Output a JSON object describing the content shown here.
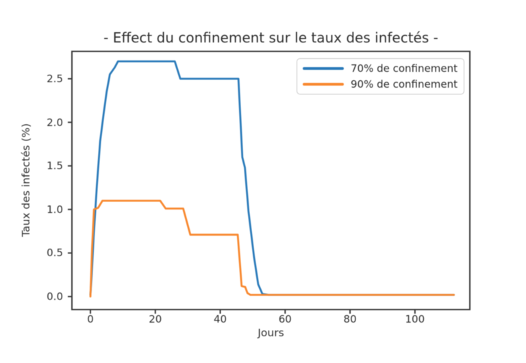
{
  "chart_data": {
    "type": "line",
    "title": "- Effect du confinement sur le taux des infectés -",
    "xlabel": "Jours",
    "ylabel": "Taux des infectés (%)",
    "xlim": [
      -5.7,
      116.9
    ],
    "ylim": [
      -0.15,
      2.81
    ],
    "grid": false,
    "legend_position": "upper right",
    "x_ticks": [
      {
        "label": "0",
        "value": 0
      },
      {
        "label": "20",
        "value": 20
      },
      {
        "label": "40",
        "value": 40
      },
      {
        "label": "60",
        "value": 60
      },
      {
        "label": "80",
        "value": 80
      },
      {
        "label": "100",
        "value": 100
      }
    ],
    "y_ticks": [
      {
        "label": "2.5",
        "value": 2.5
      },
      {
        "label": "2.0",
        "value": 2.0
      },
      {
        "label": "1.5",
        "value": 1.5
      },
      {
        "label": "1.0",
        "value": 1.0
      },
      {
        "label": "0.5",
        "value": 0.5
      },
      {
        "label": "0.0",
        "value": 0.0
      }
    ],
    "series": [
      {
        "name": "70% de confinement",
        "color": "#2b7bba",
        "points": [
          [
            0,
            0.02
          ],
          [
            0.4,
            0.25
          ],
          [
            1,
            0.68
          ],
          [
            2,
            1.28
          ],
          [
            3,
            1.78
          ],
          [
            4,
            2.08
          ],
          [
            5,
            2.35
          ],
          [
            6,
            2.55
          ],
          [
            7.5,
            2.63
          ],
          [
            8.5,
            2.7
          ],
          [
            26,
            2.7
          ],
          [
            27.7,
            2.5
          ],
          [
            45.6,
            2.5
          ],
          [
            46.8,
            1.6
          ],
          [
            47.6,
            1.48
          ],
          [
            48.7,
            0.98
          ],
          [
            50.4,
            0.46
          ],
          [
            51.7,
            0.14
          ],
          [
            53,
            0.03
          ],
          [
            55,
            0.02
          ],
          [
            112,
            0.02
          ]
        ]
      },
      {
        "name": "90% de confinement",
        "color": "#f8882f",
        "points": [
          [
            0,
            0.0
          ],
          [
            0.5,
            0.55
          ],
          [
            1.1,
            1.0
          ],
          [
            2.4,
            1.02
          ],
          [
            3.7,
            1.1
          ],
          [
            21.5,
            1.1
          ],
          [
            23.2,
            1.01
          ],
          [
            28.6,
            1.01
          ],
          [
            30.8,
            0.71
          ],
          [
            45.4,
            0.71
          ],
          [
            46.6,
            0.12
          ],
          [
            47.7,
            0.11
          ],
          [
            48.4,
            0.04
          ],
          [
            49.3,
            0.02
          ],
          [
            112,
            0.02
          ]
        ]
      }
    ]
  }
}
